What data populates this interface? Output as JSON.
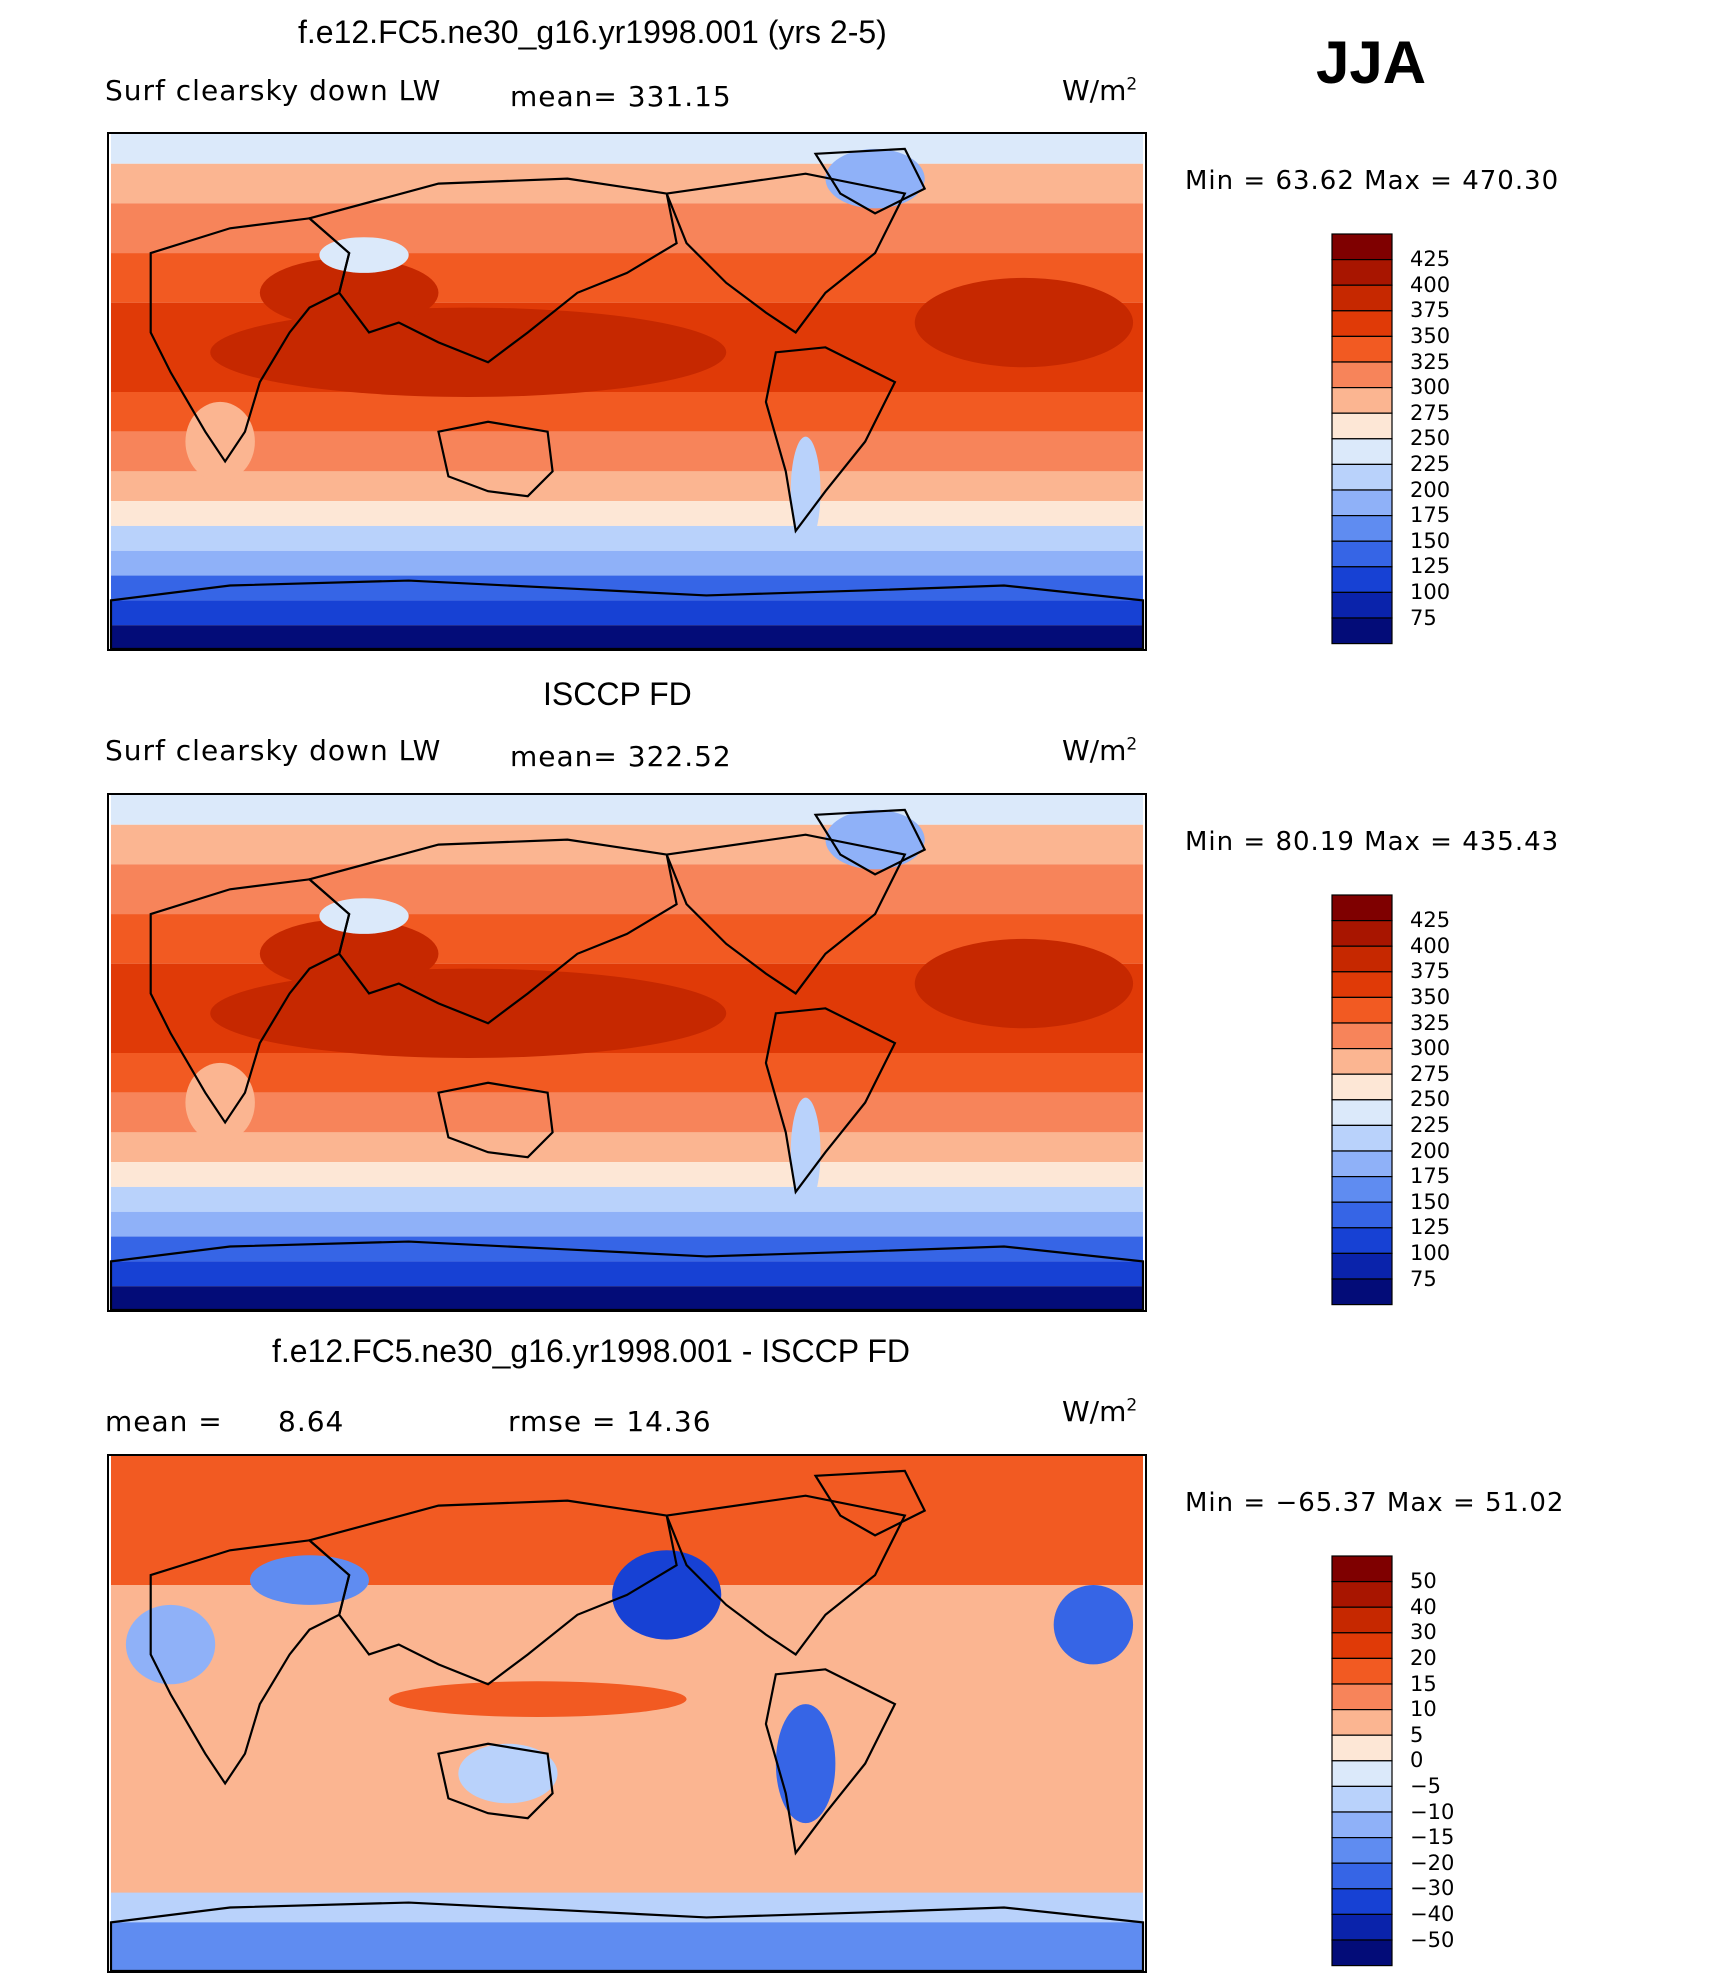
{
  "season": "JJA",
  "panels": [
    {
      "id": "model",
      "title": "f.e12.FC5.ne30_g16.yr1998.001 (yrs 2-5)",
      "variable": "Surf clearsky down LW",
      "stat1": "mean= 331.15",
      "stat2": "",
      "units_base": "W/m",
      "units_exp": "2",
      "minmax": "Min =   63.62 Max = 470.30",
      "colorbar_labels": [
        "425",
        "400",
        "375",
        "350",
        "325",
        "300",
        "275",
        "250",
        "225",
        "200",
        "175",
        "150",
        "125",
        "100",
        "75"
      ]
    },
    {
      "id": "obs",
      "title": "ISCCP FD",
      "variable": "Surf clearsky down LW",
      "stat1": "mean= 322.52",
      "stat2": "",
      "units_base": "W/m",
      "units_exp": "2",
      "minmax": "Min =   80.19 Max = 435.43",
      "colorbar_labels": [
        "425",
        "400",
        "375",
        "350",
        "325",
        "300",
        "275",
        "250",
        "225",
        "200",
        "175",
        "150",
        "125",
        "100",
        "75"
      ]
    },
    {
      "id": "diff",
      "title": "f.e12.FC5.ne30_g16.yr1998.001 - ISCCP FD",
      "variable": "mean =",
      "stat1": "8.64",
      "stat2": "rmse =    14.36",
      "units_base": "W/m",
      "units_exp": "2",
      "minmax": "Min = −65.37 Max =   51.02",
      "colorbar_labels": [
        "50",
        "40",
        "30",
        "20",
        "15",
        "10",
        "5",
        "0",
        "−5",
        "−10",
        "−15",
        "−20",
        "−30",
        "−40",
        "−50"
      ]
    }
  ],
  "colorbar_colors": [
    "#7f0000",
    "#a81500",
    "#c62800",
    "#e03a07",
    "#f25a22",
    "#f7845a",
    "#fbb591",
    "#fde7d6",
    "#dbe9fa",
    "#b9d2fb",
    "#8fb1f8",
    "#5f8cf1",
    "#3665e6",
    "#1741d4",
    "#0a23ab",
    "#030c78"
  ],
  "map_field_colors": {
    "polar_south": "#030c78",
    "south_ocean": "#3665e6",
    "mid_south": "#b9d2fb",
    "subtropic": "#fbb591",
    "tropic": "#e03a07",
    "warm_pool": "#c62800",
    "tibet": "#dbe9fa",
    "greenland": "#8fb1f8",
    "arctic": "#dbe9fa"
  }
}
